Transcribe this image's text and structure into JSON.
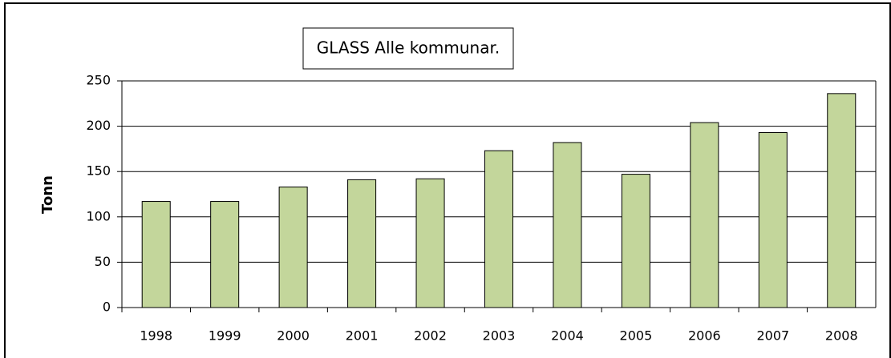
{
  "chart_data": {
    "type": "bar",
    "title": "GLASS Alle kommunar.",
    "y_label": "Tonn",
    "categories": [
      "1998",
      "1999",
      "2000",
      "2001",
      "2002",
      "2003",
      "2004",
      "2005",
      "2006",
      "2007",
      "2008"
    ],
    "values": [
      117,
      117,
      133,
      141,
      142,
      173,
      182,
      147,
      204,
      193,
      236
    ],
    "color": "#c3d69b",
    "ylim": [
      0,
      250
    ],
    "yticks": [
      0,
      50,
      100,
      150,
      200,
      250
    ],
    "grid": true
  }
}
